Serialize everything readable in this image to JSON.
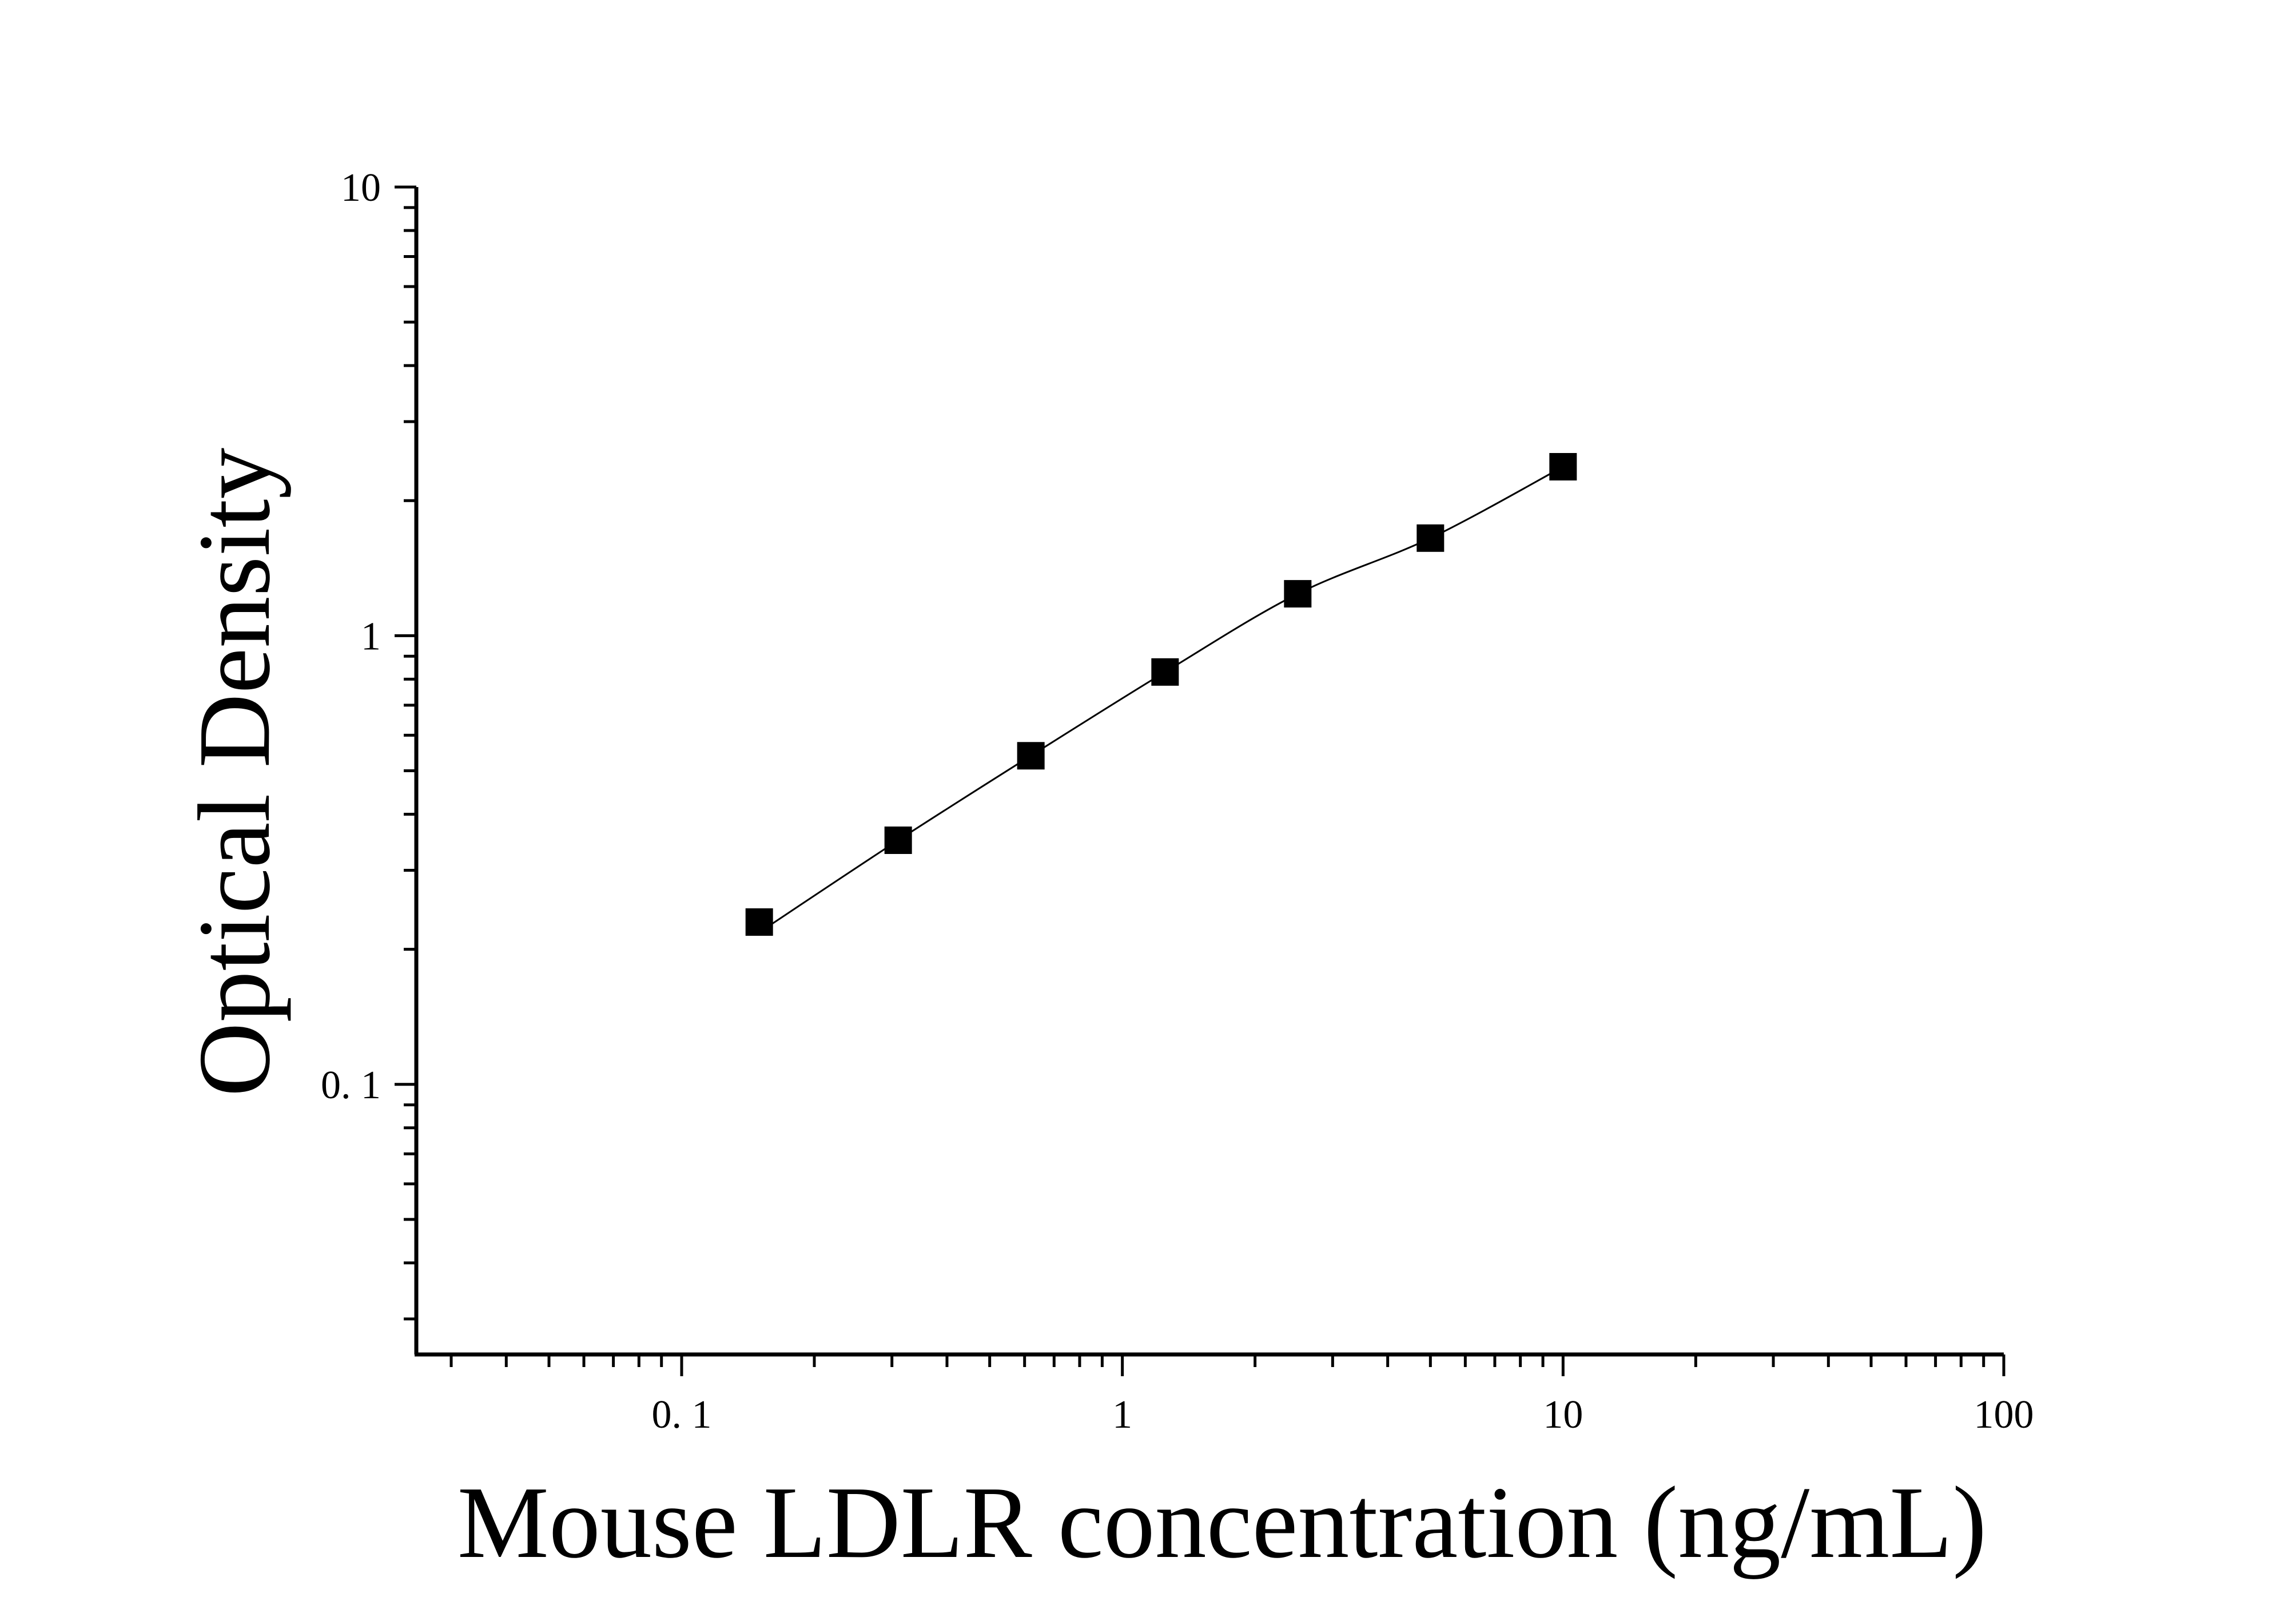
{
  "chart_data": {
    "type": "scatter",
    "title": "",
    "xlabel": "Mouse LDLR concentration (ng/mL)",
    "ylabel": "Optical Density",
    "xscale": "log",
    "yscale": "log",
    "xlim": [
      0.025,
      100
    ],
    "ylim": [
      0.025,
      10
    ],
    "xticks": [
      0.1,
      1,
      10,
      100
    ],
    "xtick_labels": [
      "0. 1",
      "1",
      "10",
      "100"
    ],
    "yticks": [
      0.1,
      1,
      10
    ],
    "ytick_labels": [
      "0. 1",
      "1",
      "10"
    ],
    "grid": false,
    "legend": "none",
    "series": [
      {
        "marker": "square",
        "color": "#000000",
        "fit_line": true,
        "x": [
          0.15,
          0.31,
          0.62,
          1.25,
          2.5,
          5,
          10
        ],
        "y": [
          0.23,
          0.35,
          0.54,
          0.83,
          1.24,
          1.65,
          2.38
        ]
      }
    ]
  }
}
